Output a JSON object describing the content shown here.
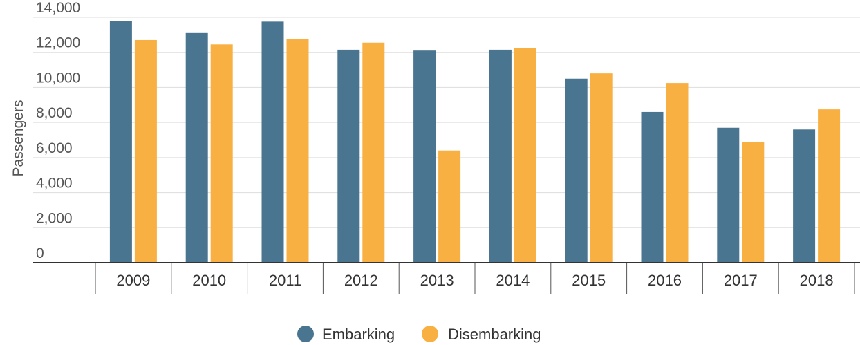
{
  "chart_data": {
    "type": "bar",
    "title": "",
    "xlabel": "",
    "ylabel": "Passengers",
    "categories": [
      "2009",
      "2010",
      "2011",
      "2012",
      "2013",
      "2014",
      "2015",
      "2016",
      "2017",
      "2018"
    ],
    "series": [
      {
        "name": "Embarking",
        "color": "#4a7591",
        "values": [
          13800,
          13100,
          13750,
          12150,
          12100,
          12150,
          10500,
          8600,
          7700,
          7600
        ]
      },
      {
        "name": "Disembarking",
        "color": "#f9b042",
        "values": [
          12700,
          12450,
          12750,
          12550,
          6400,
          12250,
          10800,
          10250,
          6900,
          8750
        ]
      }
    ],
    "ylim": [
      0,
      14000
    ],
    "yticks": [
      0,
      2000,
      4000,
      6000,
      8000,
      10000,
      12000,
      14000
    ],
    "ytick_labels": [
      "0",
      "2,000",
      "4,000",
      "6,000",
      "8,000",
      "10,000",
      "12,000",
      "14,000"
    ],
    "grid": true,
    "legend_position": "bottom-center"
  }
}
